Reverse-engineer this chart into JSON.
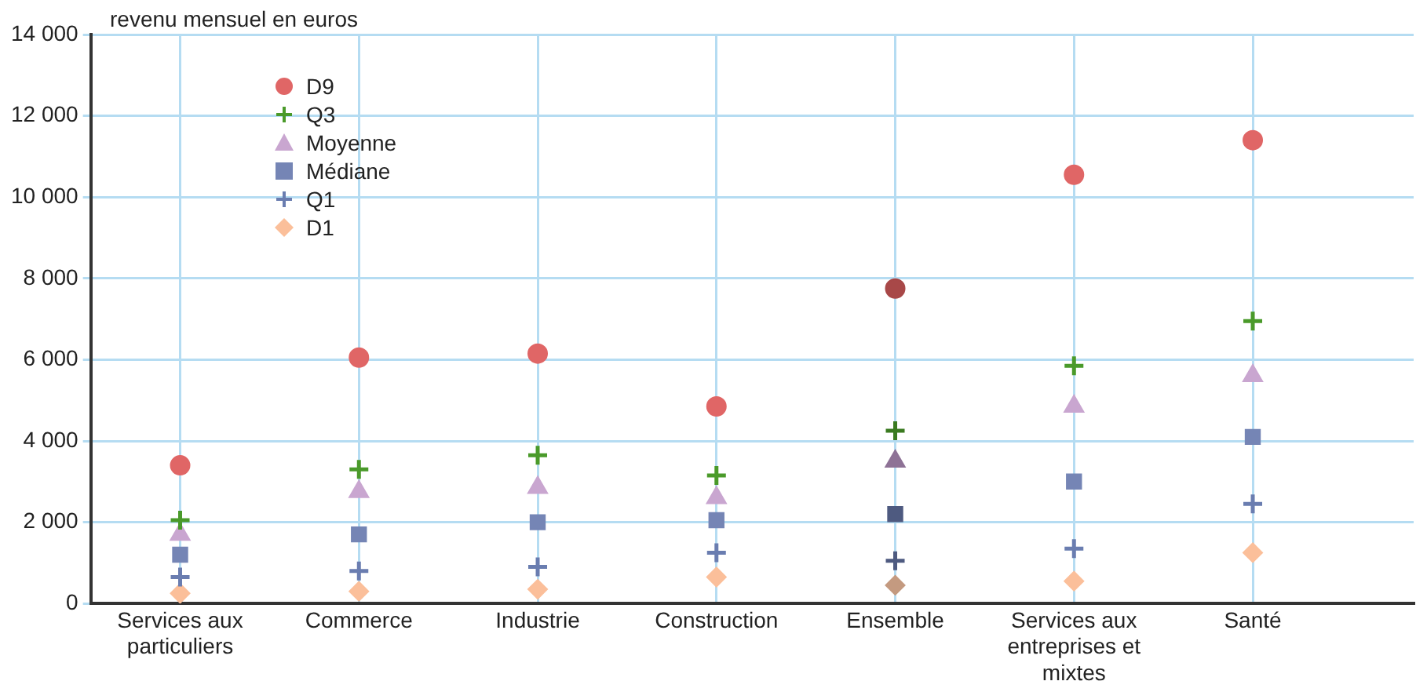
{
  "chart_data": {
    "type": "scatter",
    "ylabel": "revenu mensuel en euros",
    "categories": [
      "Services aux particuliers",
      "Commerce",
      "Industrie",
      "Construction",
      "Ensemble",
      "Services aux entreprises et mixtes",
      "Santé"
    ],
    "series": [
      {
        "name": "D9",
        "marker": "circle",
        "color": "#e06666",
        "colors": [
          "#e06666",
          "#e06666",
          "#e06666",
          "#e06666",
          "#a84848",
          "#e06666",
          "#e06666"
        ],
        "values": [
          3400,
          6050,
          6150,
          4850,
          7750,
          10550,
          11400
        ]
      },
      {
        "name": "Q3",
        "marker": "cross",
        "color": "#4a9a2a",
        "colors": [
          "#4a9a2a",
          "#4a9a2a",
          "#4a9a2a",
          "#4a9a2a",
          "#3a7a20",
          "#4a9a2a",
          "#4a9a2a"
        ],
        "values": [
          2050,
          3300,
          3650,
          3150,
          4250,
          5850,
          6950
        ]
      },
      {
        "name": "Moyenne",
        "marker": "triangle",
        "color": "#c9a6d0",
        "colors": [
          "#c9a6d0",
          "#c9a6d0",
          "#c9a6d0",
          "#c9a6d0",
          "#8e7296",
          "#c9a6d0",
          "#c9a6d0"
        ],
        "values": [
          1700,
          2750,
          2850,
          2600,
          3500,
          4850,
          5600
        ]
      },
      {
        "name": "Médiane",
        "marker": "square",
        "color": "#7585b5",
        "colors": [
          "#7585b5",
          "#7585b5",
          "#7585b5",
          "#7585b5",
          "#4e5a80",
          "#7585b5",
          "#7585b5"
        ],
        "values": [
          1200,
          1700,
          2000,
          2050,
          2200,
          3000,
          4100
        ]
      },
      {
        "name": "Q1",
        "marker": "cross",
        "color": "#6a7db0",
        "colors": [
          "#6a7db0",
          "#6a7db0",
          "#6a7db0",
          "#6a7db0",
          "#4e5a80",
          "#6a7db0",
          "#6a7db0"
        ],
        "values": [
          650,
          800,
          900,
          1250,
          1050,
          1350,
          2450
        ]
      },
      {
        "name": "D1",
        "marker": "diamond",
        "color": "#fbbf9a",
        "colors": [
          "#fbbf9a",
          "#fbbf9a",
          "#fbbf9a",
          "#fbbf9a",
          "#c49a80",
          "#fbbf9a",
          "#fbbf9a"
        ],
        "values": [
          250,
          300,
          350,
          650,
          450,
          550,
          1250
        ]
      }
    ],
    "ylim": [
      0,
      14000
    ],
    "yticks": [
      {
        "value": 0,
        "label": "0"
      },
      {
        "value": 2000,
        "label": "2 000"
      },
      {
        "value": 4000,
        "label": "4 000"
      },
      {
        "value": 6000,
        "label": "6 000"
      },
      {
        "value": 8000,
        "label": "8 000"
      },
      {
        "value": 10000,
        "label": "10 000"
      },
      {
        "value": 12000,
        "label": "12 000"
      },
      {
        "value": 14000,
        "label": "14 000"
      }
    ],
    "grid": true,
    "legend": "top left"
  }
}
